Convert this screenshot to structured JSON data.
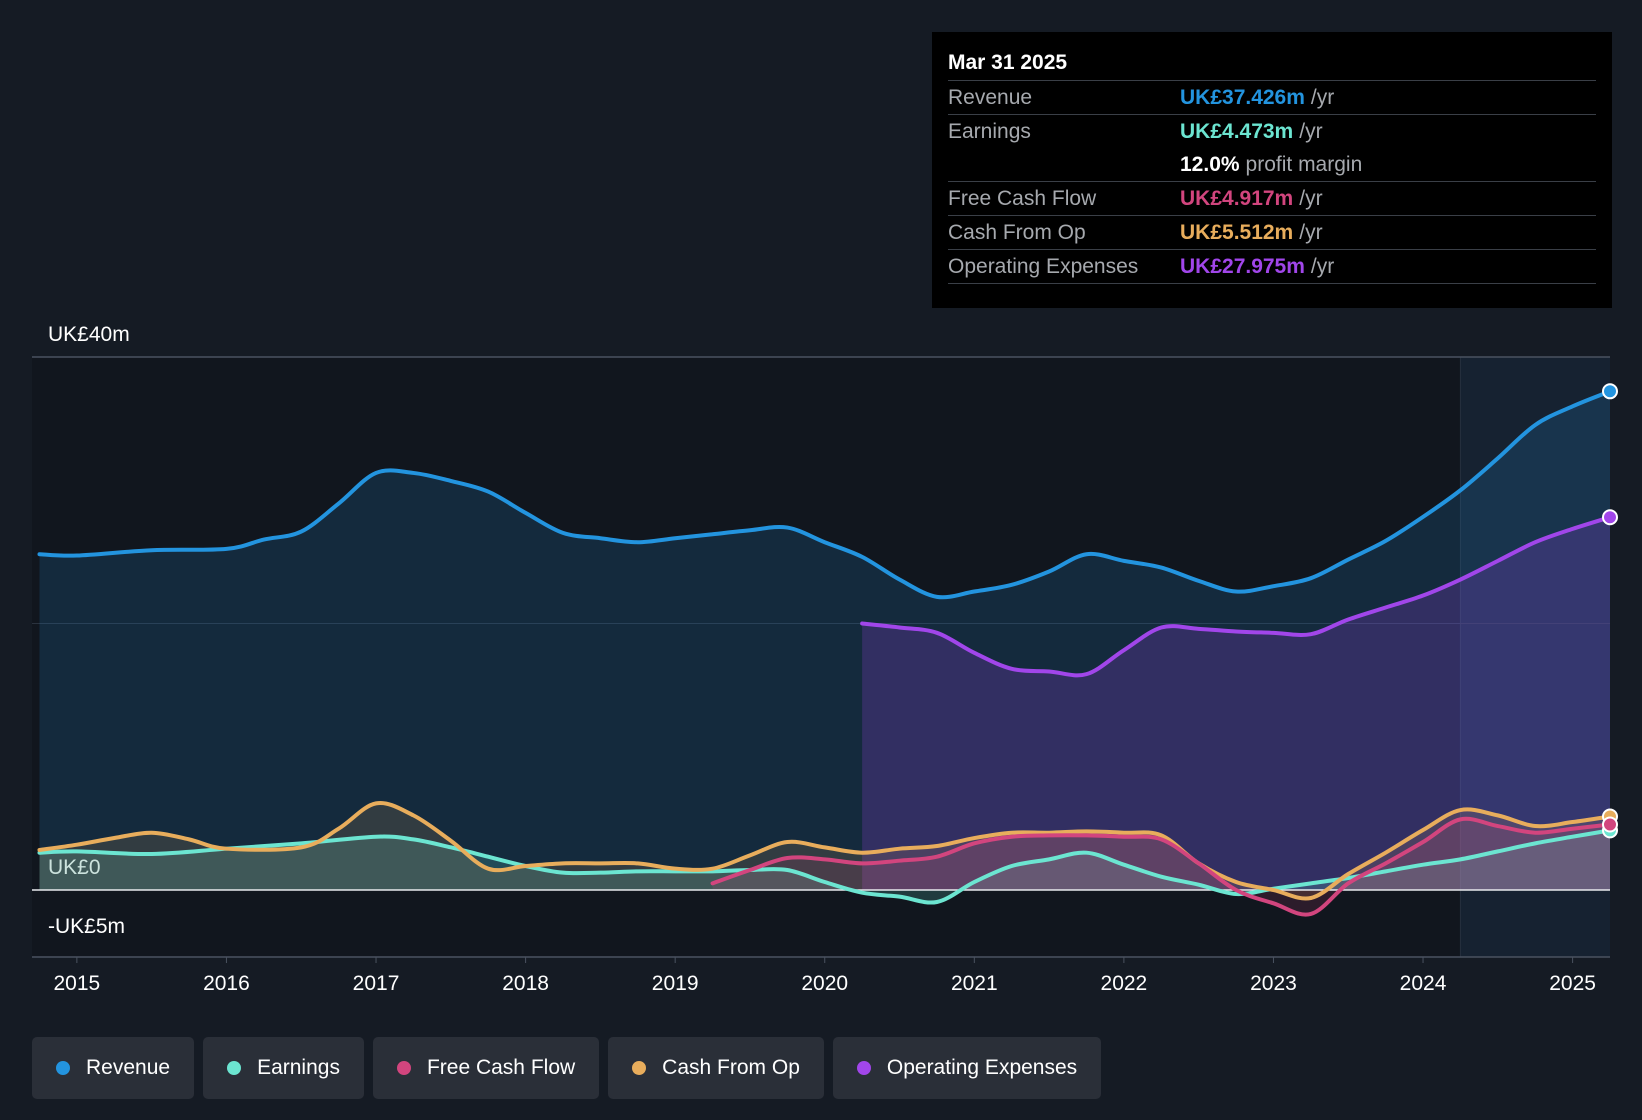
{
  "colors": {
    "background": "#151b24",
    "revenue": "#2394df",
    "earnings": "#6ce5d1",
    "free_cash_flow": "#d2457e",
    "cash_from_op": "#e8ad5c",
    "operating_expenses": "#a146ea"
  },
  "tooltip": {
    "date": "Mar 31 2025",
    "rows": [
      {
        "label": "Revenue",
        "value": "UK£37.426m",
        "unit": "/yr"
      },
      {
        "label": "Earnings",
        "value": "UK£4.473m",
        "unit": "/yr"
      },
      {
        "label": "",
        "value": "12.0%",
        "unit": "profit margin"
      },
      {
        "label": "Free Cash Flow",
        "value": "UK£4.917m",
        "unit": "/yr"
      },
      {
        "label": "Cash From Op",
        "value": "UK£5.512m",
        "unit": "/yr"
      },
      {
        "label": "Operating Expenses",
        "value": "UK£27.975m",
        "unit": "/yr"
      }
    ]
  },
  "legend": [
    {
      "label": "Revenue",
      "icon": "dot-icon"
    },
    {
      "label": "Earnings",
      "icon": "dot-icon"
    },
    {
      "label": "Free Cash Flow",
      "icon": "dot-icon"
    },
    {
      "label": "Cash From Op",
      "icon": "dot-icon"
    },
    {
      "label": "Operating Expenses",
      "icon": "dot-icon"
    }
  ],
  "chart_data": {
    "type": "area",
    "title": "",
    "y_tick_labels": [
      "UK£40m",
      "UK£0",
      "-UK£5m"
    ],
    "ylim": [
      -5,
      40
    ],
    "xlim": [
      2014.7,
      2025.25
    ],
    "x_tick_labels": [
      "2015",
      "2016",
      "2017",
      "2018",
      "2019",
      "2020",
      "2021",
      "2022",
      "2023",
      "2024",
      "2025"
    ],
    "x_ticks": [
      2015,
      2016,
      2017,
      2018,
      2019,
      2020,
      2021,
      2022,
      2023,
      2024,
      2025
    ],
    "forecast_start": 2024.25,
    "series": [
      {
        "name": "Revenue",
        "points": [
          [
            2014.75,
            25.2
          ],
          [
            2015.0,
            25.1
          ],
          [
            2015.5,
            25.5
          ],
          [
            2016.0,
            25.6
          ],
          [
            2016.25,
            26.3
          ],
          [
            2016.5,
            26.9
          ],
          [
            2016.75,
            29.0
          ],
          [
            2017.0,
            31.3
          ],
          [
            2017.25,
            31.3
          ],
          [
            2017.5,
            30.7
          ],
          [
            2017.75,
            29.9
          ],
          [
            2018.0,
            28.3
          ],
          [
            2018.25,
            26.8
          ],
          [
            2018.5,
            26.4
          ],
          [
            2018.75,
            26.1
          ],
          [
            2019.0,
            26.4
          ],
          [
            2019.25,
            26.7
          ],
          [
            2019.5,
            27.0
          ],
          [
            2019.75,
            27.2
          ],
          [
            2020.0,
            26.1
          ],
          [
            2020.25,
            25.0
          ],
          [
            2020.5,
            23.3
          ],
          [
            2020.75,
            22.0
          ],
          [
            2021.0,
            22.4
          ],
          [
            2021.25,
            22.9
          ],
          [
            2021.5,
            23.9
          ],
          [
            2021.75,
            25.2
          ],
          [
            2022.0,
            24.7
          ],
          [
            2022.25,
            24.2
          ],
          [
            2022.5,
            23.2
          ],
          [
            2022.75,
            22.4
          ],
          [
            2023.0,
            22.8
          ],
          [
            2023.25,
            23.4
          ],
          [
            2023.5,
            24.8
          ],
          [
            2023.75,
            26.2
          ],
          [
            2024.0,
            28.0
          ],
          [
            2024.25,
            30.0
          ],
          [
            2024.5,
            32.4
          ],
          [
            2024.75,
            34.9
          ],
          [
            2025.0,
            36.3
          ],
          [
            2025.25,
            37.426
          ]
        ]
      },
      {
        "name": "Earnings",
        "points": [
          [
            2014.75,
            2.8
          ],
          [
            2015.0,
            2.9
          ],
          [
            2015.5,
            2.7
          ],
          [
            2016.0,
            3.1
          ],
          [
            2016.5,
            3.5
          ],
          [
            2017.0,
            4.0
          ],
          [
            2017.25,
            3.8
          ],
          [
            2017.5,
            3.2
          ],
          [
            2017.75,
            2.5
          ],
          [
            2018.0,
            1.8
          ],
          [
            2018.25,
            1.3
          ],
          [
            2018.5,
            1.3
          ],
          [
            2018.75,
            1.4
          ],
          [
            2019.0,
            1.4
          ],
          [
            2019.25,
            1.4
          ],
          [
            2019.5,
            1.5
          ],
          [
            2019.75,
            1.5
          ],
          [
            2020.0,
            0.6
          ],
          [
            2020.25,
            -0.2
          ],
          [
            2020.5,
            -0.5
          ],
          [
            2020.75,
            -0.9
          ],
          [
            2021.0,
            0.6
          ],
          [
            2021.25,
            1.8
          ],
          [
            2021.5,
            2.3
          ],
          [
            2021.75,
            2.8
          ],
          [
            2022.0,
            1.9
          ],
          [
            2022.25,
            1.0
          ],
          [
            2022.5,
            0.4
          ],
          [
            2022.75,
            -0.3
          ],
          [
            2023.0,
            0.1
          ],
          [
            2023.25,
            0.5
          ],
          [
            2023.5,
            0.9
          ],
          [
            2023.75,
            1.4
          ],
          [
            2024.0,
            1.9
          ],
          [
            2024.25,
            2.3
          ],
          [
            2024.5,
            2.9
          ],
          [
            2024.75,
            3.5
          ],
          [
            2025.0,
            4.0
          ],
          [
            2025.25,
            4.473
          ]
        ]
      },
      {
        "name": "Free Cash Flow",
        "points": [
          [
            2019.25,
            0.5
          ],
          [
            2019.5,
            1.5
          ],
          [
            2019.75,
            2.4
          ],
          [
            2020.0,
            2.3
          ],
          [
            2020.25,
            2.0
          ],
          [
            2020.5,
            2.2
          ],
          [
            2020.75,
            2.5
          ],
          [
            2021.0,
            3.5
          ],
          [
            2021.25,
            4.0
          ],
          [
            2021.5,
            4.1
          ],
          [
            2021.75,
            4.1
          ],
          [
            2022.0,
            4.0
          ],
          [
            2022.25,
            3.8
          ],
          [
            2022.5,
            2.0
          ],
          [
            2022.75,
            0.0
          ],
          [
            2023.0,
            -1.0
          ],
          [
            2023.25,
            -1.8
          ],
          [
            2023.5,
            0.5
          ],
          [
            2023.75,
            2.0
          ],
          [
            2024.0,
            3.6
          ],
          [
            2024.25,
            5.3
          ],
          [
            2024.5,
            4.8
          ],
          [
            2024.75,
            4.3
          ],
          [
            2025.0,
            4.6
          ],
          [
            2025.25,
            4.917
          ]
        ]
      },
      {
        "name": "Cash From Op",
        "points": [
          [
            2014.75,
            3.0
          ],
          [
            2015.0,
            3.4
          ],
          [
            2015.25,
            3.9
          ],
          [
            2015.5,
            4.3
          ],
          [
            2015.75,
            3.8
          ],
          [
            2016.0,
            3.1
          ],
          [
            2016.5,
            3.2
          ],
          [
            2016.75,
            4.6
          ],
          [
            2017.0,
            6.5
          ],
          [
            2017.25,
            5.6
          ],
          [
            2017.5,
            3.7
          ],
          [
            2017.75,
            1.6
          ],
          [
            2018.0,
            1.8
          ],
          [
            2018.25,
            2.0
          ],
          [
            2018.5,
            2.0
          ],
          [
            2018.75,
            2.0
          ],
          [
            2019.0,
            1.6
          ],
          [
            2019.25,
            1.6
          ],
          [
            2019.5,
            2.6
          ],
          [
            2019.75,
            3.6
          ],
          [
            2020.0,
            3.2
          ],
          [
            2020.25,
            2.8
          ],
          [
            2020.5,
            3.1
          ],
          [
            2020.75,
            3.3
          ],
          [
            2021.0,
            3.9
          ],
          [
            2021.25,
            4.3
          ],
          [
            2021.5,
            4.3
          ],
          [
            2021.75,
            4.4
          ],
          [
            2022.0,
            4.3
          ],
          [
            2022.25,
            4.1
          ],
          [
            2022.5,
            2.0
          ],
          [
            2022.75,
            0.6
          ],
          [
            2023.0,
            0.0
          ],
          [
            2023.25,
            -0.6
          ],
          [
            2023.5,
            1.2
          ],
          [
            2023.75,
            2.8
          ],
          [
            2024.0,
            4.5
          ],
          [
            2024.25,
            6.0
          ],
          [
            2024.5,
            5.6
          ],
          [
            2024.75,
            4.8
          ],
          [
            2025.0,
            5.1
          ],
          [
            2025.25,
            5.512
          ]
        ]
      },
      {
        "name": "Operating Expenses",
        "points": [
          [
            2020.25,
            20.0
          ],
          [
            2020.5,
            19.7
          ],
          [
            2020.75,
            19.3
          ],
          [
            2021.0,
            17.8
          ],
          [
            2021.25,
            16.6
          ],
          [
            2021.5,
            16.4
          ],
          [
            2021.75,
            16.2
          ],
          [
            2022.0,
            18.0
          ],
          [
            2022.25,
            19.7
          ],
          [
            2022.5,
            19.6
          ],
          [
            2022.75,
            19.4
          ],
          [
            2023.0,
            19.3
          ],
          [
            2023.25,
            19.2
          ],
          [
            2023.5,
            20.3
          ],
          [
            2023.75,
            21.2
          ],
          [
            2024.0,
            22.1
          ],
          [
            2024.25,
            23.3
          ],
          [
            2024.5,
            24.7
          ],
          [
            2024.75,
            26.1
          ],
          [
            2025.0,
            27.1
          ],
          [
            2025.25,
            27.975
          ]
        ]
      }
    ]
  }
}
